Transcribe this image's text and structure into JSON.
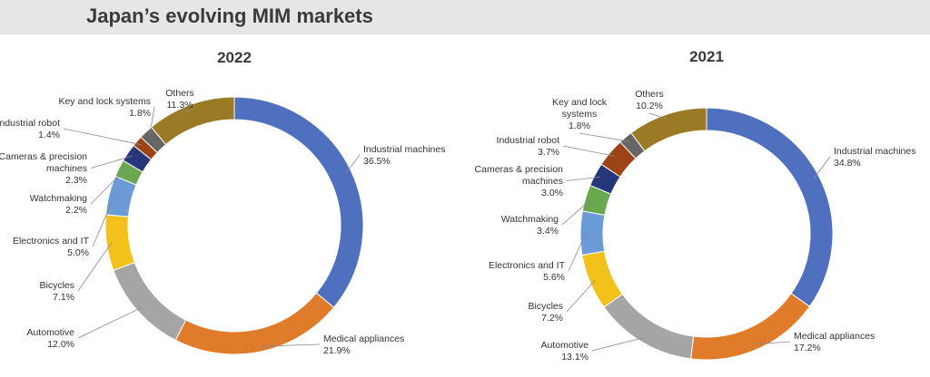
{
  "page": {
    "title": "Japan’s evolving MIM markets"
  },
  "colors": {
    "Industrial machines": "#4f6fbf",
    "Medical appliances": "#e07b2a",
    "Automotive": "#a5a5a5",
    "Bicycles": "#f2c21b",
    "Electronics and IT": "#6b9bd6",
    "Watchmaking": "#6aa84f",
    "Cameras & precision machines": "#25367a",
    "Industrial robot": "#9c4318",
    "Key and lock systems": "#666666",
    "Others": "#9a7a24"
  },
  "chart_data": [
    {
      "type": "pie",
      "title": "2022",
      "categories": [
        "Industrial machines",
        "Medical appliances",
        "Automotive",
        "Bicycles",
        "Electronics and IT",
        "Watchmaking",
        "Cameras & precision machines",
        "Industrial robot",
        "Key and lock systems",
        "Others"
      ],
      "values": [
        36.5,
        21.9,
        12.0,
        7.1,
        5.0,
        2.2,
        2.3,
        1.4,
        1.8,
        11.3
      ],
      "labels": [
        [
          "Industrial machines",
          "36.5%"
        ],
        [
          "Medical appliances",
          "21.9%"
        ],
        [
          "Automotive",
          "12.0%"
        ],
        [
          "Bicycles",
          "7.1%"
        ],
        [
          "Electronics and IT",
          "5.0%"
        ],
        [
          "Watchmaking",
          "2.2%"
        ],
        [
          "Cameras & precision",
          "machines",
          "2.3%"
        ],
        [
          "Industrial robot",
          "1.4%"
        ],
        [
          "Key and lock systems",
          "1.8%"
        ],
        [
          "Others",
          "11.3%"
        ]
      ]
    },
    {
      "type": "pie",
      "title": "2021",
      "categories": [
        "Industrial machines",
        "Medical appliances",
        "Automotive",
        "Bicycles",
        "Electronics and IT",
        "Watchmaking",
        "Cameras & precision machines",
        "Industrial robot",
        "Key and lock systems",
        "Others"
      ],
      "values": [
        34.8,
        17.2,
        13.1,
        7.2,
        5.6,
        3.4,
        3.0,
        3.7,
        1.8,
        10.2
      ],
      "labels": [
        [
          "Industrial machines",
          "34.8%"
        ],
        [
          "Medical appliances",
          "17.2%"
        ],
        [
          "Automotive",
          "13.1%"
        ],
        [
          "Bicycles",
          "7.2%"
        ],
        [
          "Electronics and IT",
          "5.6%"
        ],
        [
          "Watchmaking",
          "3.4%"
        ],
        [
          "Cameras & precision",
          "machines",
          "3.0%"
        ],
        [
          "Industrial robot",
          "3.7%"
        ],
        [
          "Key and lock",
          "systems",
          "1.8%"
        ],
        [
          "Others",
          "10.2%"
        ]
      ]
    }
  ]
}
